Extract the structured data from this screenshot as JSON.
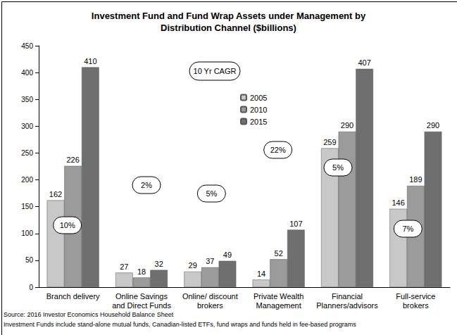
{
  "chart_data": {
    "type": "bar",
    "title": "Investment Fund and Fund Wrap Assets under Management by\nDistribution Channel ($billions)",
    "categories": [
      "Branch delivery",
      "Online Savings\nand Direct Funds",
      "Online/ discount\nbrokers",
      "Private Wealth\nManagement",
      "Financial\nPlanners/advisors",
      "Full-service\nbrokers"
    ],
    "series": [
      {
        "name": "2005",
        "color": "#c8c8c8",
        "values": [
          162,
          27,
          29,
          14,
          259,
          146
        ]
      },
      {
        "name": "2010",
        "color": "#9b9b9b",
        "values": [
          226,
          18,
          37,
          52,
          290,
          189
        ]
      },
      {
        "name": "2015",
        "color": "#6f6f6f",
        "values": [
          410,
          32,
          49,
          107,
          407,
          290
        ]
      }
    ],
    "ylim": [
      0,
      450
    ],
    "yticks": [
      0,
      50,
      100,
      150,
      200,
      250,
      300,
      350,
      400,
      450
    ],
    "grid": false,
    "legend": "top",
    "data_labels": true,
    "annotations": {
      "title": "10 Yr CAGR",
      "labels": [
        "10%",
        "2%",
        "5%",
        "22%",
        "5%",
        "7%"
      ]
    },
    "notes": [
      "Source: 2016 Investor Economics Household Balance Sheet",
      "Investment Funds include stand-alone mutual funds, Canadian-listed ETFs, fund wraps and funds held in fee-based programs"
    ]
  }
}
